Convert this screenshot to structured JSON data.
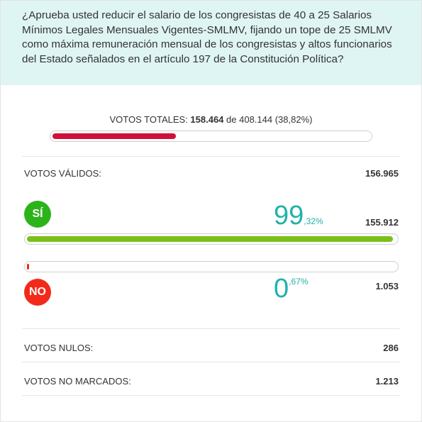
{
  "question": "¿Aprueba usted reducir el salario de los congresistas de 40 a 25 Salarios Mínimos Legales Mensuales Vigentes-SMLMV, fijando un tope de 25 SMLMV como máxima remuneración mensual de los congresistas y altos funcionarios del Estado señalados en el artículo 197 de la Constitución Política?",
  "totals": {
    "label": "VOTOS TOTALES: ",
    "count": "158.464",
    "of_text": " de ",
    "potential": "408.144",
    "percent_text": " (38,82%)",
    "progress_fraction": 0.3882,
    "bar_color": "#d0103a"
  },
  "validos": {
    "label": "VOTOS VÁLIDOS:",
    "value": "156.965"
  },
  "si": {
    "badge": "SÍ",
    "badge_color": "#2db31a",
    "pct_int": "99",
    "pct_dec": ",32%",
    "votes": "155.912",
    "progress_fraction": 0.9932,
    "bar_color": "#79c11a"
  },
  "no": {
    "badge": "NO",
    "badge_color": "#f22a1a",
    "pct_int": "0",
    "pct_dec": ",67%",
    "votes": "1.053",
    "progress_fraction": 0.0067,
    "bar_color": "#f22a1a"
  },
  "nulos": {
    "label": "VOTOS NULOS:",
    "value": "286"
  },
  "no_marcados": {
    "label": "VOTOS NO MARCADOS:",
    "value": "1.213"
  },
  "accent_color": "#1fb3a8"
}
